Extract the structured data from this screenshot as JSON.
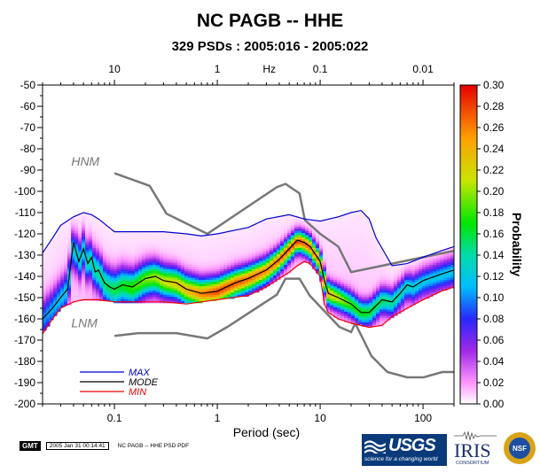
{
  "header": {
    "title": "NC PAGB -- HHE",
    "subtitle": "329 PSDs : 2005:016 - 2005:022"
  },
  "chart_data": {
    "type": "heatmap",
    "title": "NC PAGB -- HHE",
    "subtitle": "329 PSDs : 2005:016 - 2005:022",
    "xlabel": "Period (sec)",
    "x2label": "Hz",
    "ylabel": "",
    "xscale": "log",
    "xlim": [
      0.02,
      200
    ],
    "ylim": [
      -200,
      -50
    ],
    "x_ticks": [
      {
        "value": 0.1,
        "label": "0.1"
      },
      {
        "value": 1,
        "label": "1"
      },
      {
        "value": 10,
        "label": "10"
      },
      {
        "value": 100,
        "label": "100"
      }
    ],
    "x2_ticks": [
      {
        "period": 0.1,
        "label": "10"
      },
      {
        "period": 1,
        "label": "1"
      },
      {
        "period": 10,
        "label": "0.1"
      },
      {
        "period": 100,
        "label": "0.01"
      }
    ],
    "y_ticks": [
      -50,
      -60,
      -70,
      -80,
      -90,
      -100,
      -110,
      -120,
      -130,
      -140,
      -150,
      -160,
      -170,
      -180,
      -190,
      -200
    ],
    "colorbar": {
      "label": "Probability",
      "min": 0.0,
      "max": 0.3,
      "ticks": [
        "0.30",
        "0.28",
        "0.26",
        "0.24",
        "0.22",
        "0.20",
        "0.18",
        "0.16",
        "0.14",
        "0.12",
        "0.10",
        "0.08",
        "0.06",
        "0.04",
        "0.02",
        "0.00"
      ]
    },
    "density": {
      "sigma": [
        [
          0.02,
          6
        ],
        [
          0.1,
          6
        ],
        [
          0.3,
          5
        ],
        [
          1,
          4.5
        ],
        [
          3,
          4
        ],
        [
          6,
          3.5
        ],
        [
          10,
          3.5
        ],
        [
          30,
          4
        ],
        [
          200,
          5
        ]
      ],
      "peak": [
        [
          0.02,
          0.1
        ],
        [
          0.1,
          0.16
        ],
        [
          0.5,
          0.24
        ],
        [
          1,
          0.28
        ],
        [
          3,
          0.26
        ],
        [
          6,
          0.28
        ],
        [
          10,
          0.26
        ],
        [
          20,
          0.18
        ],
        [
          100,
          0.12
        ],
        [
          200,
          0.12
        ]
      ]
    },
    "series": [
      {
        "name": "MAX",
        "color": "#0000cc",
        "x": [
          0.02,
          0.025,
          0.03,
          0.04,
          0.05,
          0.06,
          0.07,
          0.1,
          0.2,
          0.3,
          0.5,
          0.7,
          1,
          2,
          3,
          5,
          7,
          10,
          15,
          20,
          25,
          30,
          35,
          50,
          70,
          100,
          150,
          200
        ],
        "y": [
          -129,
          -122,
          -116,
          -112,
          -110,
          -111,
          -113,
          -119,
          -119,
          -119,
          -120,
          -121,
          -120,
          -117,
          -113,
          -111,
          -113,
          -114,
          -112,
          -110,
          -109,
          -113,
          -122,
          -135,
          -134,
          -131,
          -128,
          -126
        ]
      },
      {
        "name": "MODE",
        "color": "#000000",
        "x": [
          0.02,
          0.025,
          0.03,
          0.035,
          0.04,
          0.045,
          0.05,
          0.055,
          0.06,
          0.065,
          0.07,
          0.08,
          0.09,
          0.1,
          0.12,
          0.15,
          0.2,
          0.25,
          0.3,
          0.4,
          0.5,
          0.7,
          1,
          1.5,
          2,
          3,
          4,
          5,
          6,
          7,
          8,
          10,
          11,
          12,
          15,
          20,
          25,
          30,
          40,
          50,
          60,
          70,
          80,
          100,
          150,
          200
        ],
        "y": [
          -160,
          -155,
          -150,
          -146,
          -124,
          -133,
          -127,
          -134,
          -131,
          -138,
          -137,
          -143,
          -145,
          -146,
          -144,
          -145,
          -141,
          -140,
          -142,
          -143,
          -146,
          -148,
          -147,
          -143,
          -141,
          -137,
          -132,
          -127,
          -123,
          -124,
          -126,
          -133,
          -142,
          -148,
          -150,
          -153,
          -157,
          -157,
          -151,
          -152,
          -148,
          -144,
          -145,
          -142,
          -139,
          -137
        ]
      },
      {
        "name": "MIN",
        "color": "#ee0000",
        "x": [
          0.02,
          0.025,
          0.03,
          0.04,
          0.05,
          0.07,
          0.1,
          0.2,
          0.3,
          0.5,
          0.7,
          1,
          2,
          3,
          4,
          5,
          6,
          7,
          8,
          10,
          11,
          12,
          15,
          20,
          30,
          40,
          50,
          70,
          100,
          150,
          200
        ],
        "y": [
          -167,
          -160,
          -155,
          -152,
          -151,
          -151,
          -152,
          -152,
          -152,
          -153,
          -152,
          -151,
          -149,
          -145,
          -141,
          -138,
          -135,
          -133,
          -134,
          -140,
          -153,
          -157,
          -160,
          -162,
          -164,
          -163,
          -159,
          -155,
          -151,
          -147,
          -145
        ]
      }
    ],
    "models": [
      {
        "name": "HNM",
        "x": [
          0.1,
          0.22,
          0.32,
          0.8,
          3.8,
          4.6,
          6.3,
          7.1,
          10,
          15,
          20,
          40,
          100,
          200
        ],
        "y": [
          -91.5,
          -97.4,
          -110.5,
          -120,
          -98,
          -96.5,
          -101,
          -113.5,
          -120,
          -126,
          -138,
          -135,
          -131,
          -128
        ]
      },
      {
        "name": "LNM",
        "x": [
          0.1,
          0.17,
          0.4,
          0.8,
          1.26,
          3.8,
          4.6,
          6.3,
          7.9,
          15.4,
          20,
          21.9,
          31.6,
          45,
          70,
          101,
          154,
          200
        ],
        "y": [
          -168,
          -166.7,
          -166.7,
          -169.2,
          -163.7,
          -148.6,
          -141.1,
          -141.1,
          -149,
          -163.8,
          -166.2,
          -162.1,
          -177.5,
          -185,
          -187.5,
          -187.5,
          -185,
          -185
        ]
      }
    ],
    "legend": {
      "placement": "bottom-left",
      "entries": [
        {
          "label": "MAX",
          "color": "#0000cc"
        },
        {
          "label": "MODE",
          "color": "#000000"
        },
        {
          "label": "MIN",
          "color": "#ee0000"
        }
      ]
    }
  },
  "footer": {
    "gmt_label": "GMT",
    "timestamp": "2005 Jan 31 00:14:41",
    "caption": "NC PAGB -- HHE PSD PDF"
  },
  "logos": {
    "usgs": "USGS",
    "usgs_tagline": "science for a changing world",
    "iris": "IRIS",
    "iris_sub": "CONSORTIUM",
    "nsf": "NSF"
  }
}
